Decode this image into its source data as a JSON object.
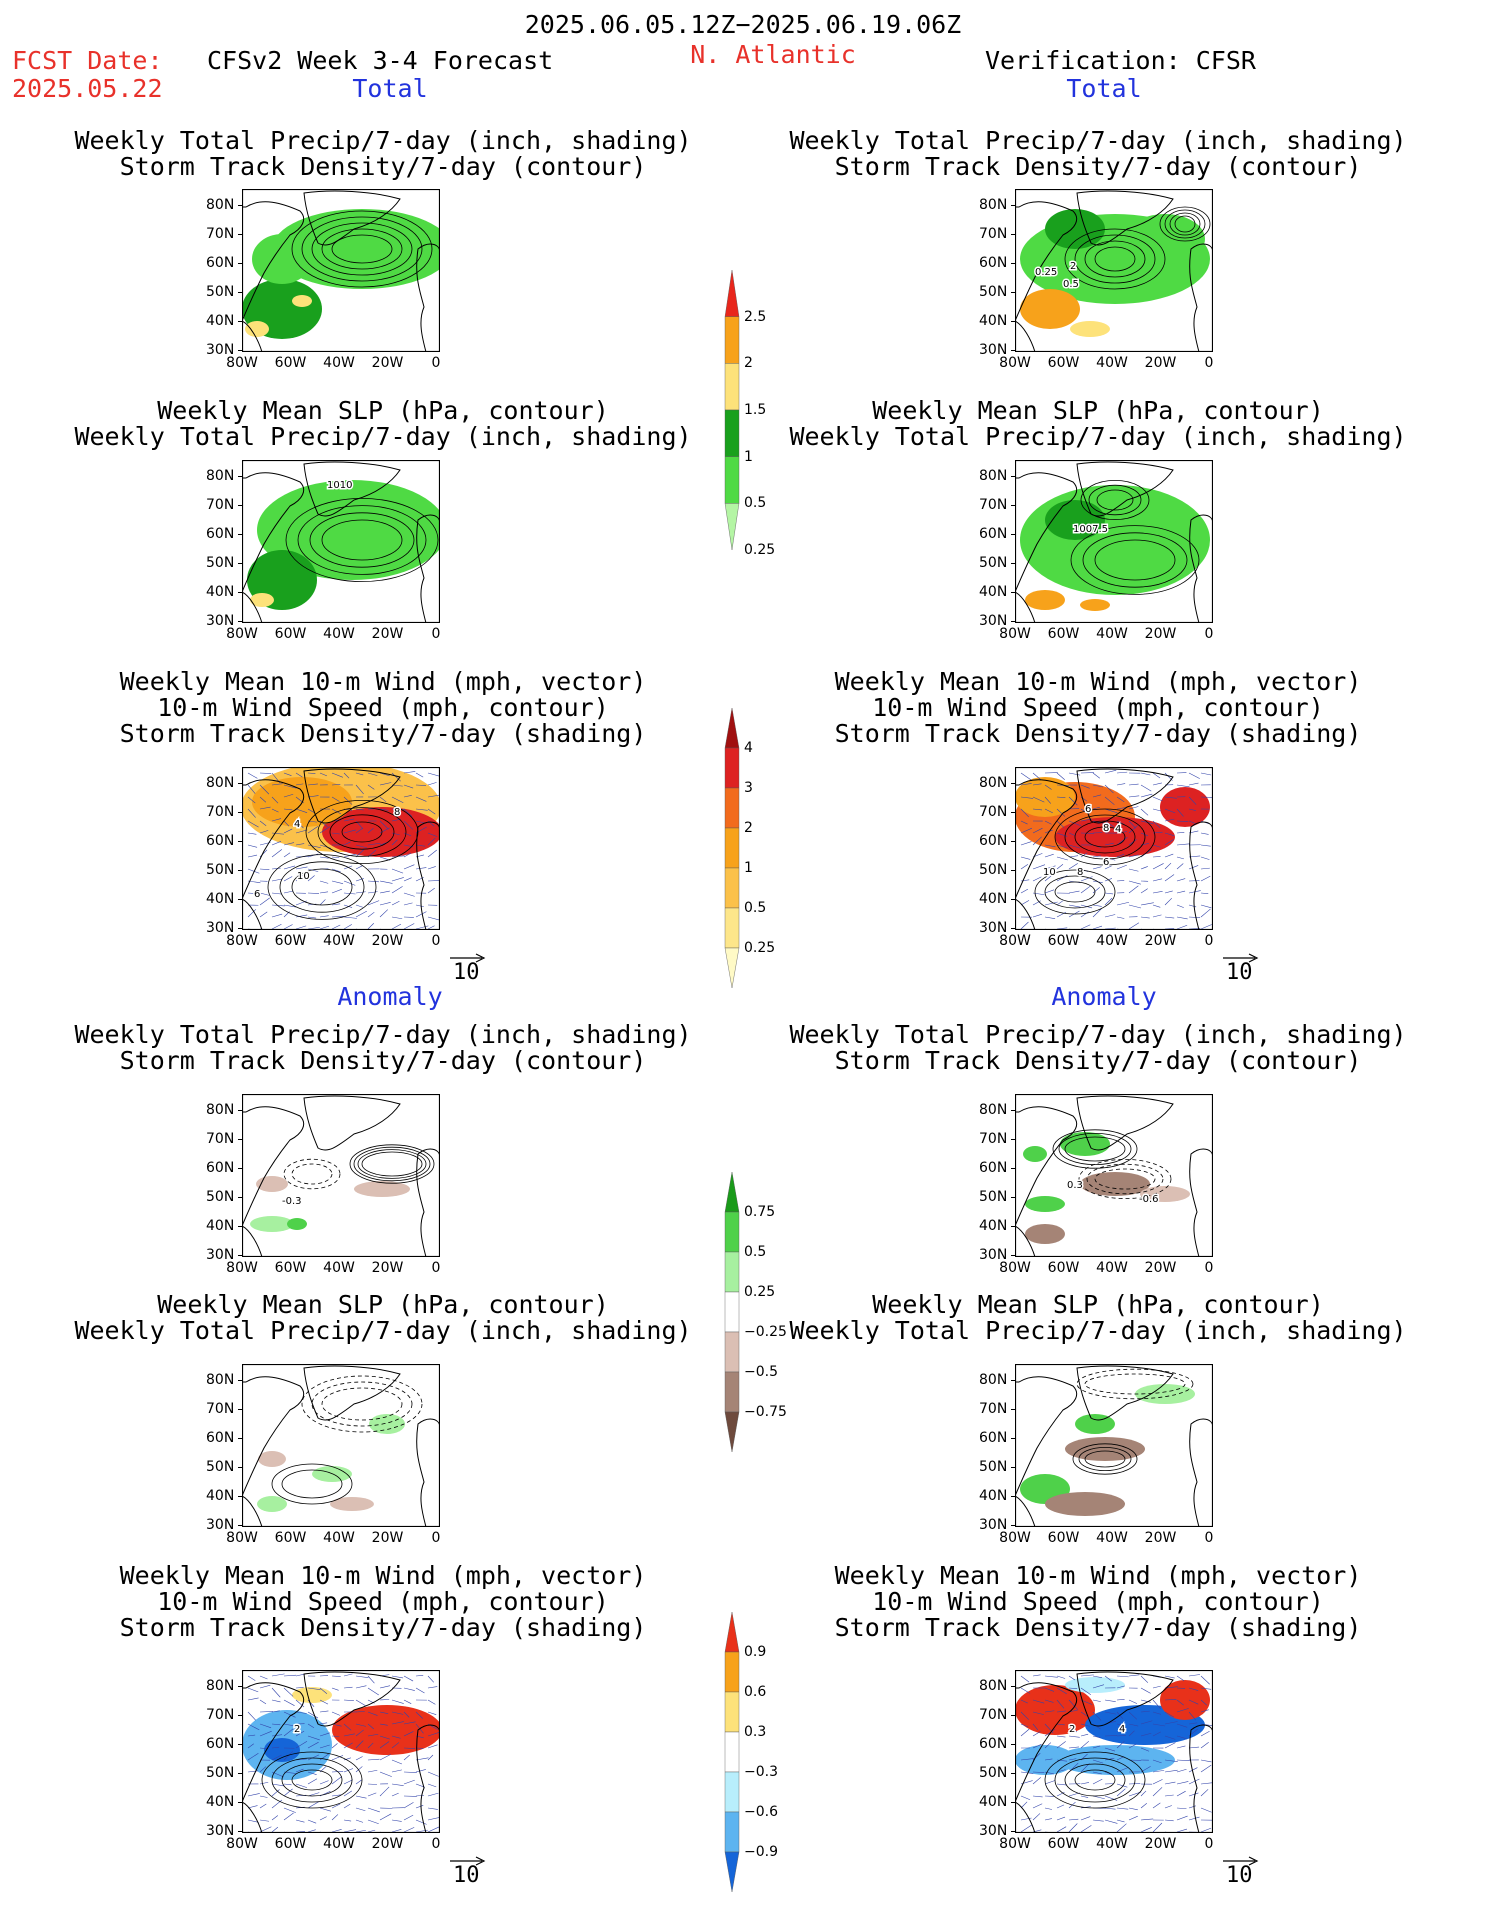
{
  "header": {
    "date_range": "2025.06.05.12Z−2025.06.19.06Z",
    "fcst_label": "FCST Date:",
    "fcst_date": "2025.05.22",
    "model": "CFSv2 Week 3-4 Forecast",
    "region": "N. Atlantic",
    "verification": "Verification: CFSR"
  },
  "sections": {
    "total": "Total",
    "anomaly": "Anomaly"
  },
  "titles": {
    "precip_storm": [
      "Weekly Total Precip/7-day (inch, shading)",
      "Storm Track Density/7-day (contour)"
    ],
    "slp_precip": [
      "Weekly Mean SLP (hPa, contour)",
      "Weekly Total Precip/7-day (inch, shading)"
    ],
    "wind": [
      "Weekly Mean 10-m Wind (mph, vector)",
      "10-m Wind Speed (mph, contour)",
      "Storm Track Density/7-day (shading)"
    ]
  },
  "axes": {
    "lat": [
      "80N",
      "70N",
      "60N",
      "50N",
      "40N",
      "30N"
    ],
    "lon": [
      "80W",
      "60W",
      "40W",
      "20W",
      "0"
    ]
  },
  "vector_ref": "10",
  "colorbars": {
    "precip_total": {
      "labels": [
        "2.5",
        "2",
        "1.5",
        "1",
        "0.5",
        "0.25"
      ],
      "colors": [
        "#e8261c",
        "#f7a21b",
        "#fde27a",
        "#19a01d",
        "#4fda44",
        "#b4f5a4"
      ]
    },
    "storm_total": {
      "labels": [
        "4",
        "3",
        "2",
        "1",
        "0.5",
        "0.25"
      ],
      "colors": [
        "#a01010",
        "#dd2222",
        "#f26b1d",
        "#f7a21b",
        "#fbc14a",
        "#fde68a",
        "#fffac6"
      ]
    },
    "precip_anom": {
      "labels": [
        "0.75",
        "0.5",
        "0.25",
        "−0.25",
        "−0.5",
        "−0.75"
      ],
      "colors": [
        "#1a9a1a",
        "#4fd14a",
        "#a7f0a0",
        "#ffffff",
        "#dbbfb4",
        "#a58476",
        "#6e4a3d"
      ]
    },
    "storm_anom": {
      "labels": [
        "0.9",
        "0.6",
        "0.3",
        "−0.3",
        "−0.6",
        "−0.9"
      ],
      "colors": [
        "#e8311a",
        "#f7a21b",
        "#fde27a",
        "#ffffff",
        "#b8eefc",
        "#5db4f0",
        "#1565d8"
      ]
    }
  },
  "panels": [
    {
      "id": "fc-total-precip",
      "labels": []
    },
    {
      "id": "fc-total-slp",
      "labels": [
        "1010"
      ]
    },
    {
      "id": "fc-total-wind",
      "labels": [
        "4",
        "8",
        "10",
        "6"
      ]
    },
    {
      "id": "fc-anom-precip",
      "labels": [
        "-0.3"
      ]
    },
    {
      "id": "fc-anom-slp",
      "labels": []
    },
    {
      "id": "fc-anom-wind",
      "labels": [
        "2"
      ]
    },
    {
      "id": "ver-total-precip",
      "labels": [
        "0.25",
        "2",
        "0.5"
      ]
    },
    {
      "id": "ver-total-slp",
      "labels": [
        "1007.5"
      ]
    },
    {
      "id": "ver-total-wind",
      "labels": [
        "6",
        "8",
        "10",
        "8",
        "6",
        "4"
      ]
    },
    {
      "id": "ver-anom-precip",
      "labels": [
        "0.3",
        "-0.6"
      ]
    },
    {
      "id": "ver-anom-slp",
      "labels": []
    },
    {
      "id": "ver-anom-wind",
      "labels": [
        "2",
        "4"
      ]
    }
  ]
}
